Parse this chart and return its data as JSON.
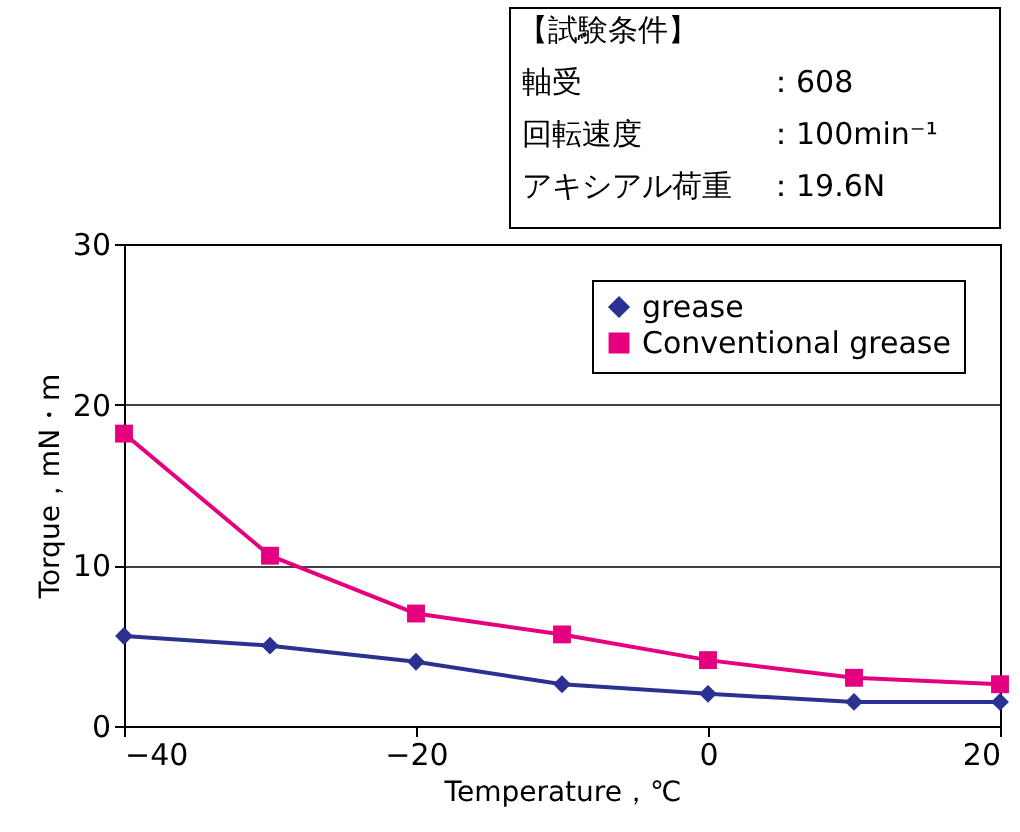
{
  "chart_data": {
    "type": "line",
    "xlabel": "Temperature，℃",
    "ylabel": "Torque，mN・m",
    "x": [
      -40,
      -30,
      -20,
      -10,
      0,
      10,
      20
    ],
    "series": [
      {
        "name": "grease",
        "color": "#2b3190",
        "marker": "diamond",
        "values": [
          5.6,
          5.0,
          4.0,
          2.6,
          2.0,
          1.5,
          1.5
        ]
      },
      {
        "name": "Conventional grease",
        "color": "#e5007f",
        "marker": "square",
        "values": [
          18.2,
          10.6,
          7.0,
          5.7,
          4.1,
          3.0,
          2.6
        ]
      }
    ],
    "xlim": [
      -40,
      20
    ],
    "xticks": [
      {
        "value": -40,
        "label": "−40"
      },
      {
        "value": -20,
        "label": "−20"
      },
      0,
      20
    ],
    "ylim": [
      0,
      30
    ],
    "yticks": [
      0,
      10,
      20,
      30
    ],
    "grid": "y",
    "legend": "top right",
    "line_style": "solid",
    "annotations": [
      "【試験条件】",
      "軸受：608",
      "回転速度：100min⁻¹",
      "アキシアル荷重：19.6N"
    ]
  }
}
